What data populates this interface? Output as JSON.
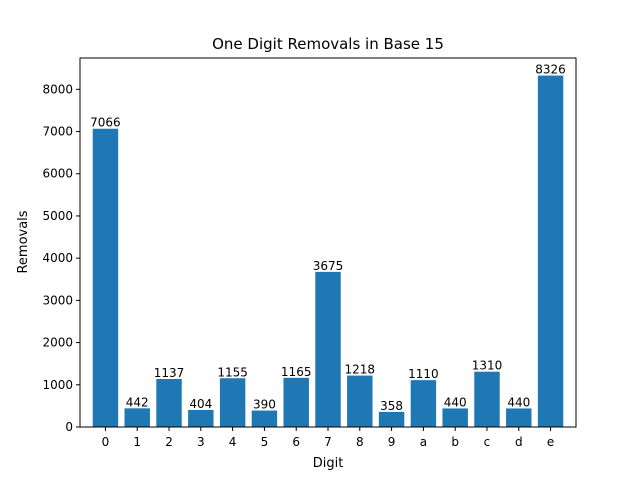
{
  "chart_data": {
    "type": "bar",
    "title": "One Digit Removals in Base 15",
    "xlabel": "Digit",
    "ylabel": "Removals",
    "categories": [
      "0",
      "1",
      "2",
      "3",
      "4",
      "5",
      "6",
      "7",
      "8",
      "9",
      "a",
      "b",
      "c",
      "d",
      "e"
    ],
    "values": [
      7066,
      442,
      1137,
      404,
      1155,
      390,
      1165,
      3675,
      1218,
      358,
      1110,
      440,
      1310,
      440,
      8326
    ],
    "ylim": [
      0,
      8742
    ],
    "yticks": [
      0,
      1000,
      2000,
      3000,
      4000,
      5000,
      6000,
      7000,
      8000
    ],
    "bar_color": "#1f77b4",
    "grid": false,
    "legend": "none"
  }
}
